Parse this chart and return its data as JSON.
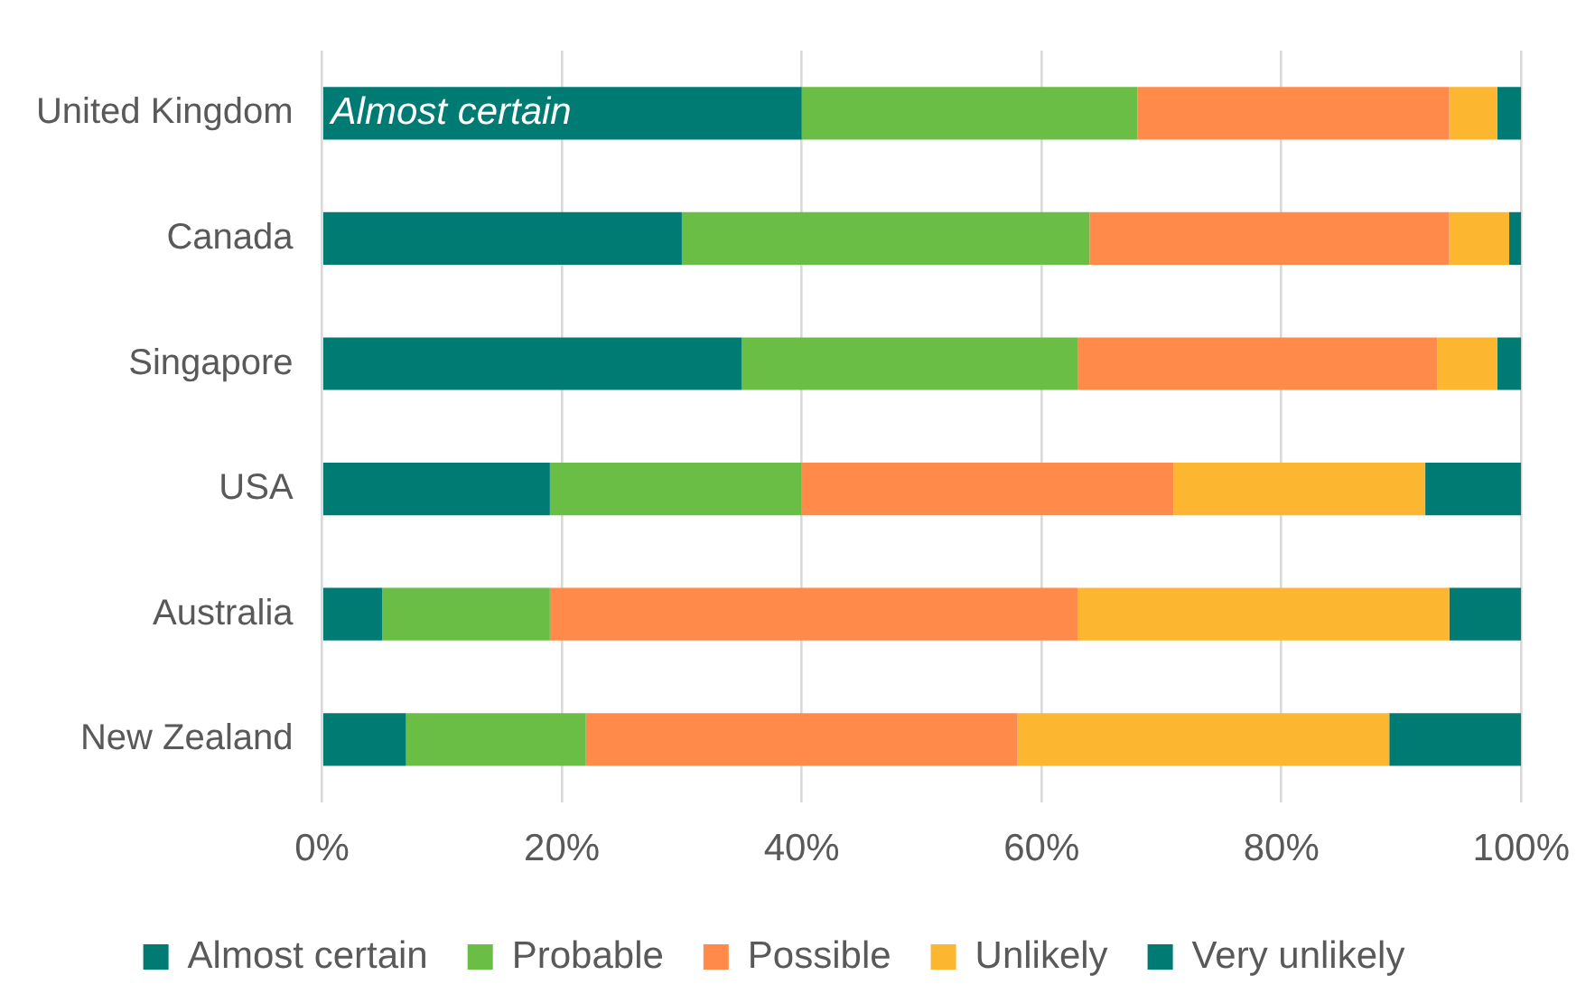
{
  "chart_data": {
    "type": "bar",
    "orientation": "horizontal",
    "stacked": true,
    "categories": [
      "United Kingdom",
      "Canada",
      "Singapore",
      "USA",
      "Australia",
      "New Zealand"
    ],
    "series": [
      {
        "name": "Almost certain",
        "color": "#007b73",
        "values": [
          40,
          30,
          35,
          19,
          5,
          7
        ]
      },
      {
        "name": "Probable",
        "color": "#6abd45",
        "values": [
          28,
          34,
          28,
          21,
          14,
          15
        ]
      },
      {
        "name": "Possible",
        "color": "#ff8a4a",
        "values": [
          26,
          30,
          30,
          31,
          44,
          36
        ]
      },
      {
        "name": "Unlikely",
        "color": "#fdb62f",
        "values": [
          4,
          5,
          5,
          21,
          31,
          31
        ]
      },
      {
        "name": "Very unlikely",
        "color": "#007b73",
        "values": [
          2,
          1,
          2,
          8,
          6,
          11
        ]
      }
    ],
    "xlim": [
      0,
      100
    ],
    "xticks": [
      {
        "value": 0,
        "label": "0%"
      },
      {
        "value": 20,
        "label": "20%"
      },
      {
        "value": 40,
        "label": "40%"
      },
      {
        "value": 60,
        "label": "60%"
      },
      {
        "value": 80,
        "label": "80%"
      },
      {
        "value": 100,
        "label": "100%"
      }
    ],
    "grid": "x",
    "legend": "bottom",
    "annotations": [
      {
        "text": "Almost certain",
        "x": 0,
        "y": "United Kingdom"
      }
    ]
  }
}
